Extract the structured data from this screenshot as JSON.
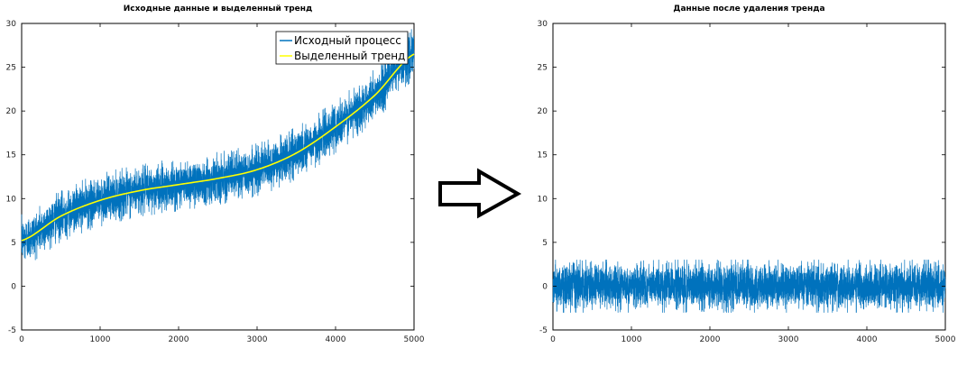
{
  "chart_data": [
    {
      "type": "line",
      "title": "Исходные данные и выделенный тренд",
      "xlabel": "",
      "ylabel": "",
      "xlim": [
        0,
        5000
      ],
      "ylim": [
        -5,
        30
      ],
      "xticks": [
        0,
        1000,
        2000,
        3000,
        4000,
        5000
      ],
      "yticks": [
        -5,
        0,
        5,
        10,
        15,
        20,
        25,
        30
      ],
      "grid": false,
      "legend": "top-right",
      "series": [
        {
          "name": "Исходный процесс",
          "color": "#0072bd",
          "kind": "noisy",
          "trend_x": [
            0,
            500,
            1000,
            1500,
            2000,
            2500,
            3000,
            3500,
            4000,
            4500,
            5000
          ],
          "trend_y": [
            5.2,
            8.0,
            9.8,
            10.9,
            11.6,
            12.3,
            13.3,
            15.2,
            18.2,
            21.8,
            26.5
          ],
          "noise_amplitude": 1.2,
          "n_points": 5000
        },
        {
          "name": "Выделенный тренд",
          "color": "#ffff00",
          "kind": "smooth",
          "x": [
            0,
            500,
            1000,
            1500,
            2000,
            2500,
            3000,
            3500,
            4000,
            4500,
            5000
          ],
          "y": [
            5.2,
            8.0,
            9.8,
            10.9,
            11.6,
            12.3,
            13.3,
            15.2,
            18.2,
            21.8,
            26.5
          ]
        }
      ]
    },
    {
      "type": "line",
      "title": "Данные после удаления тренда",
      "xlabel": "",
      "ylabel": "",
      "xlim": [
        0,
        5000
      ],
      "ylim": [
        -5,
        30
      ],
      "xticks": [
        0,
        1000,
        2000,
        3000,
        4000,
        5000
      ],
      "yticks": [
        -5,
        0,
        5,
        10,
        15,
        20,
        25,
        30
      ],
      "grid": false,
      "series": [
        {
          "color": "#0072bd",
          "kind": "noisy",
          "trend_x": [
            0,
            5000
          ],
          "trend_y": [
            0,
            0
          ],
          "noise_amplitude": 1.2,
          "n_points": 5000
        }
      ]
    }
  ],
  "arrow": {
    "direction": "right",
    "stroke": "#000000",
    "fill": "#ffffff"
  }
}
